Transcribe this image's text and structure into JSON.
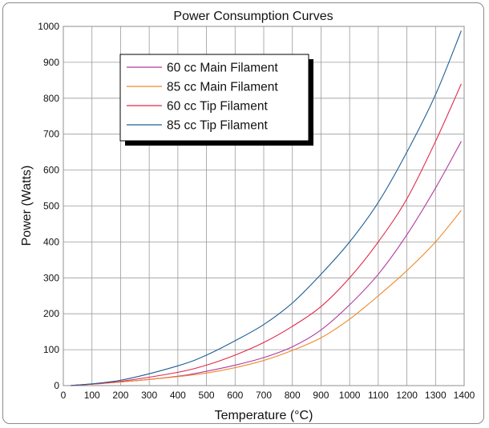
{
  "chart_data": {
    "type": "line",
    "title": "Power Consumption Curves",
    "xlabel": "Temperature (°C)",
    "ylabel": "Power (Watts)",
    "xlim": [
      0,
      1400
    ],
    "ylim": [
      0,
      1000
    ],
    "xticks": [
      0,
      100,
      200,
      300,
      400,
      500,
      600,
      700,
      800,
      900,
      1000,
      1100,
      1200,
      1300,
      1400
    ],
    "yticks": [
      0,
      100,
      200,
      300,
      400,
      500,
      600,
      700,
      800,
      900,
      1000
    ],
    "grid": true,
    "legend_position": "top-left",
    "series": [
      {
        "name": "60 cc Main Filament",
        "color": "#b03a9e",
        "x": [
          25,
          200,
          400,
          500,
          600,
          700,
          800,
          900,
          1000,
          1100,
          1200,
          1300,
          1390
        ],
        "y": [
          0,
          10,
          26,
          40,
          57,
          78,
          108,
          155,
          225,
          310,
          420,
          550,
          680
        ]
      },
      {
        "name": "85 cc Main Filament",
        "color": "#ee8a2c",
        "x": [
          25,
          200,
          400,
          500,
          600,
          700,
          800,
          900,
          1000,
          1100,
          1200,
          1300,
          1390
        ],
        "y": [
          0,
          10,
          25,
          35,
          50,
          70,
          98,
          133,
          185,
          250,
          320,
          400,
          488
        ]
      },
      {
        "name": "60 cc Tip Filament",
        "color": "#e0284a",
        "x": [
          25,
          200,
          400,
          500,
          600,
          700,
          800,
          900,
          1000,
          1100,
          1200,
          1300,
          1390
        ],
        "y": [
          0,
          12,
          37,
          57,
          85,
          120,
          165,
          220,
          300,
          400,
          520,
          680,
          840
        ]
      },
      {
        "name": "85 cc Tip Filament",
        "color": "#1f5f95",
        "x": [
          25,
          200,
          400,
          500,
          600,
          700,
          800,
          900,
          1000,
          1100,
          1200,
          1300,
          1390
        ],
        "y": [
          0,
          15,
          55,
          85,
          125,
          170,
          230,
          310,
          400,
          510,
          650,
          810,
          988
        ]
      }
    ]
  }
}
